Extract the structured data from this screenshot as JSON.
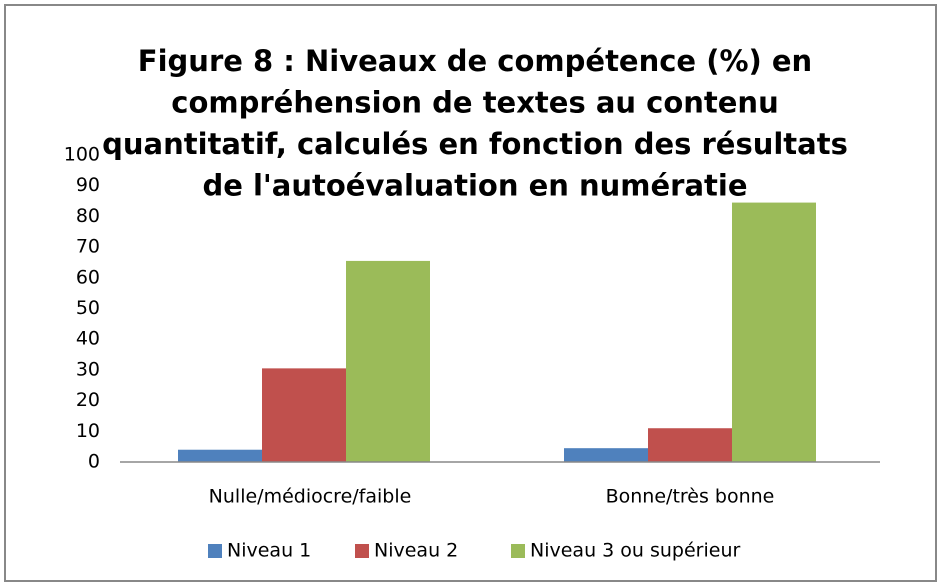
{
  "chart_data": {
    "type": "bar",
    "title": [
      "Figure 8 : Niveaux de compétence (%) en",
      "compréhension de textes au contenu",
      "quantitatif, calculés en fonction des résultats",
      "de l'autoévaluation en numératie"
    ],
    "categories": [
      "Nulle/médiocre/faible",
      "Bonne/très bonne"
    ],
    "series": [
      {
        "name": "Niveau 1",
        "color": "#4f81bd",
        "values": [
          4,
          4.5
        ]
      },
      {
        "name": "Niveau 2",
        "color": "#c0504d",
        "values": [
          30.5,
          11
        ]
      },
      {
        "name": "Niveau 3 ou supérieur",
        "color": "#9bbb59",
        "values": [
          65.5,
          84.5
        ]
      }
    ],
    "ylim": [
      0,
      100
    ],
    "yticks": [
      0,
      10,
      20,
      30,
      40,
      50,
      60,
      70,
      80,
      90,
      100
    ],
    "grid": false,
    "legend": "bottom"
  }
}
